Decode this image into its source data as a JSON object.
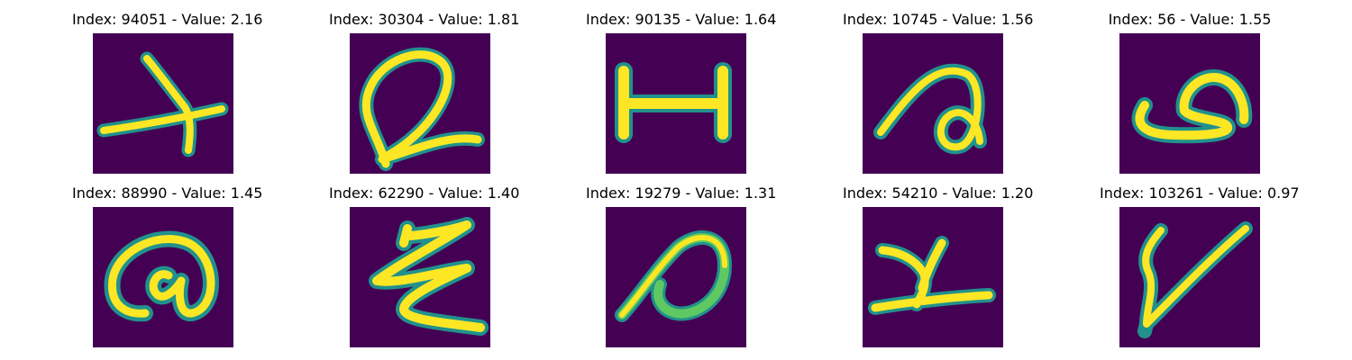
{
  "panels": [
    {
      "title": "Index: 94051 - Value: 2.16",
      "glyph": "glyph-1"
    },
    {
      "title": "Index: 30304 - Value: 1.81",
      "glyph": "glyph-2"
    },
    {
      "title": "Index: 90135 - Value: 1.64",
      "glyph": "glyph-3"
    },
    {
      "title": "Index: 10745 - Value: 1.56",
      "glyph": "glyph-4"
    },
    {
      "title": "Index: 56 - Value: 1.55",
      "glyph": "glyph-5"
    },
    {
      "title": "Index: 88990 - Value: 1.45",
      "glyph": "glyph-6"
    },
    {
      "title": "Index: 62290 - Value: 1.40",
      "glyph": "glyph-7"
    },
    {
      "title": "Index: 19279 - Value: 1.31",
      "glyph": "glyph-8"
    },
    {
      "title": "Index: 54210 - Value: 1.20",
      "glyph": "glyph-9"
    },
    {
      "title": "Index: 103261 - Value: 0.97",
      "glyph": "glyph-10"
    }
  ],
  "colors": {
    "background": "#440154",
    "stroke_outer": "#21918c",
    "stroke_mid": "#5ec962",
    "stroke_core": "#fde725"
  }
}
